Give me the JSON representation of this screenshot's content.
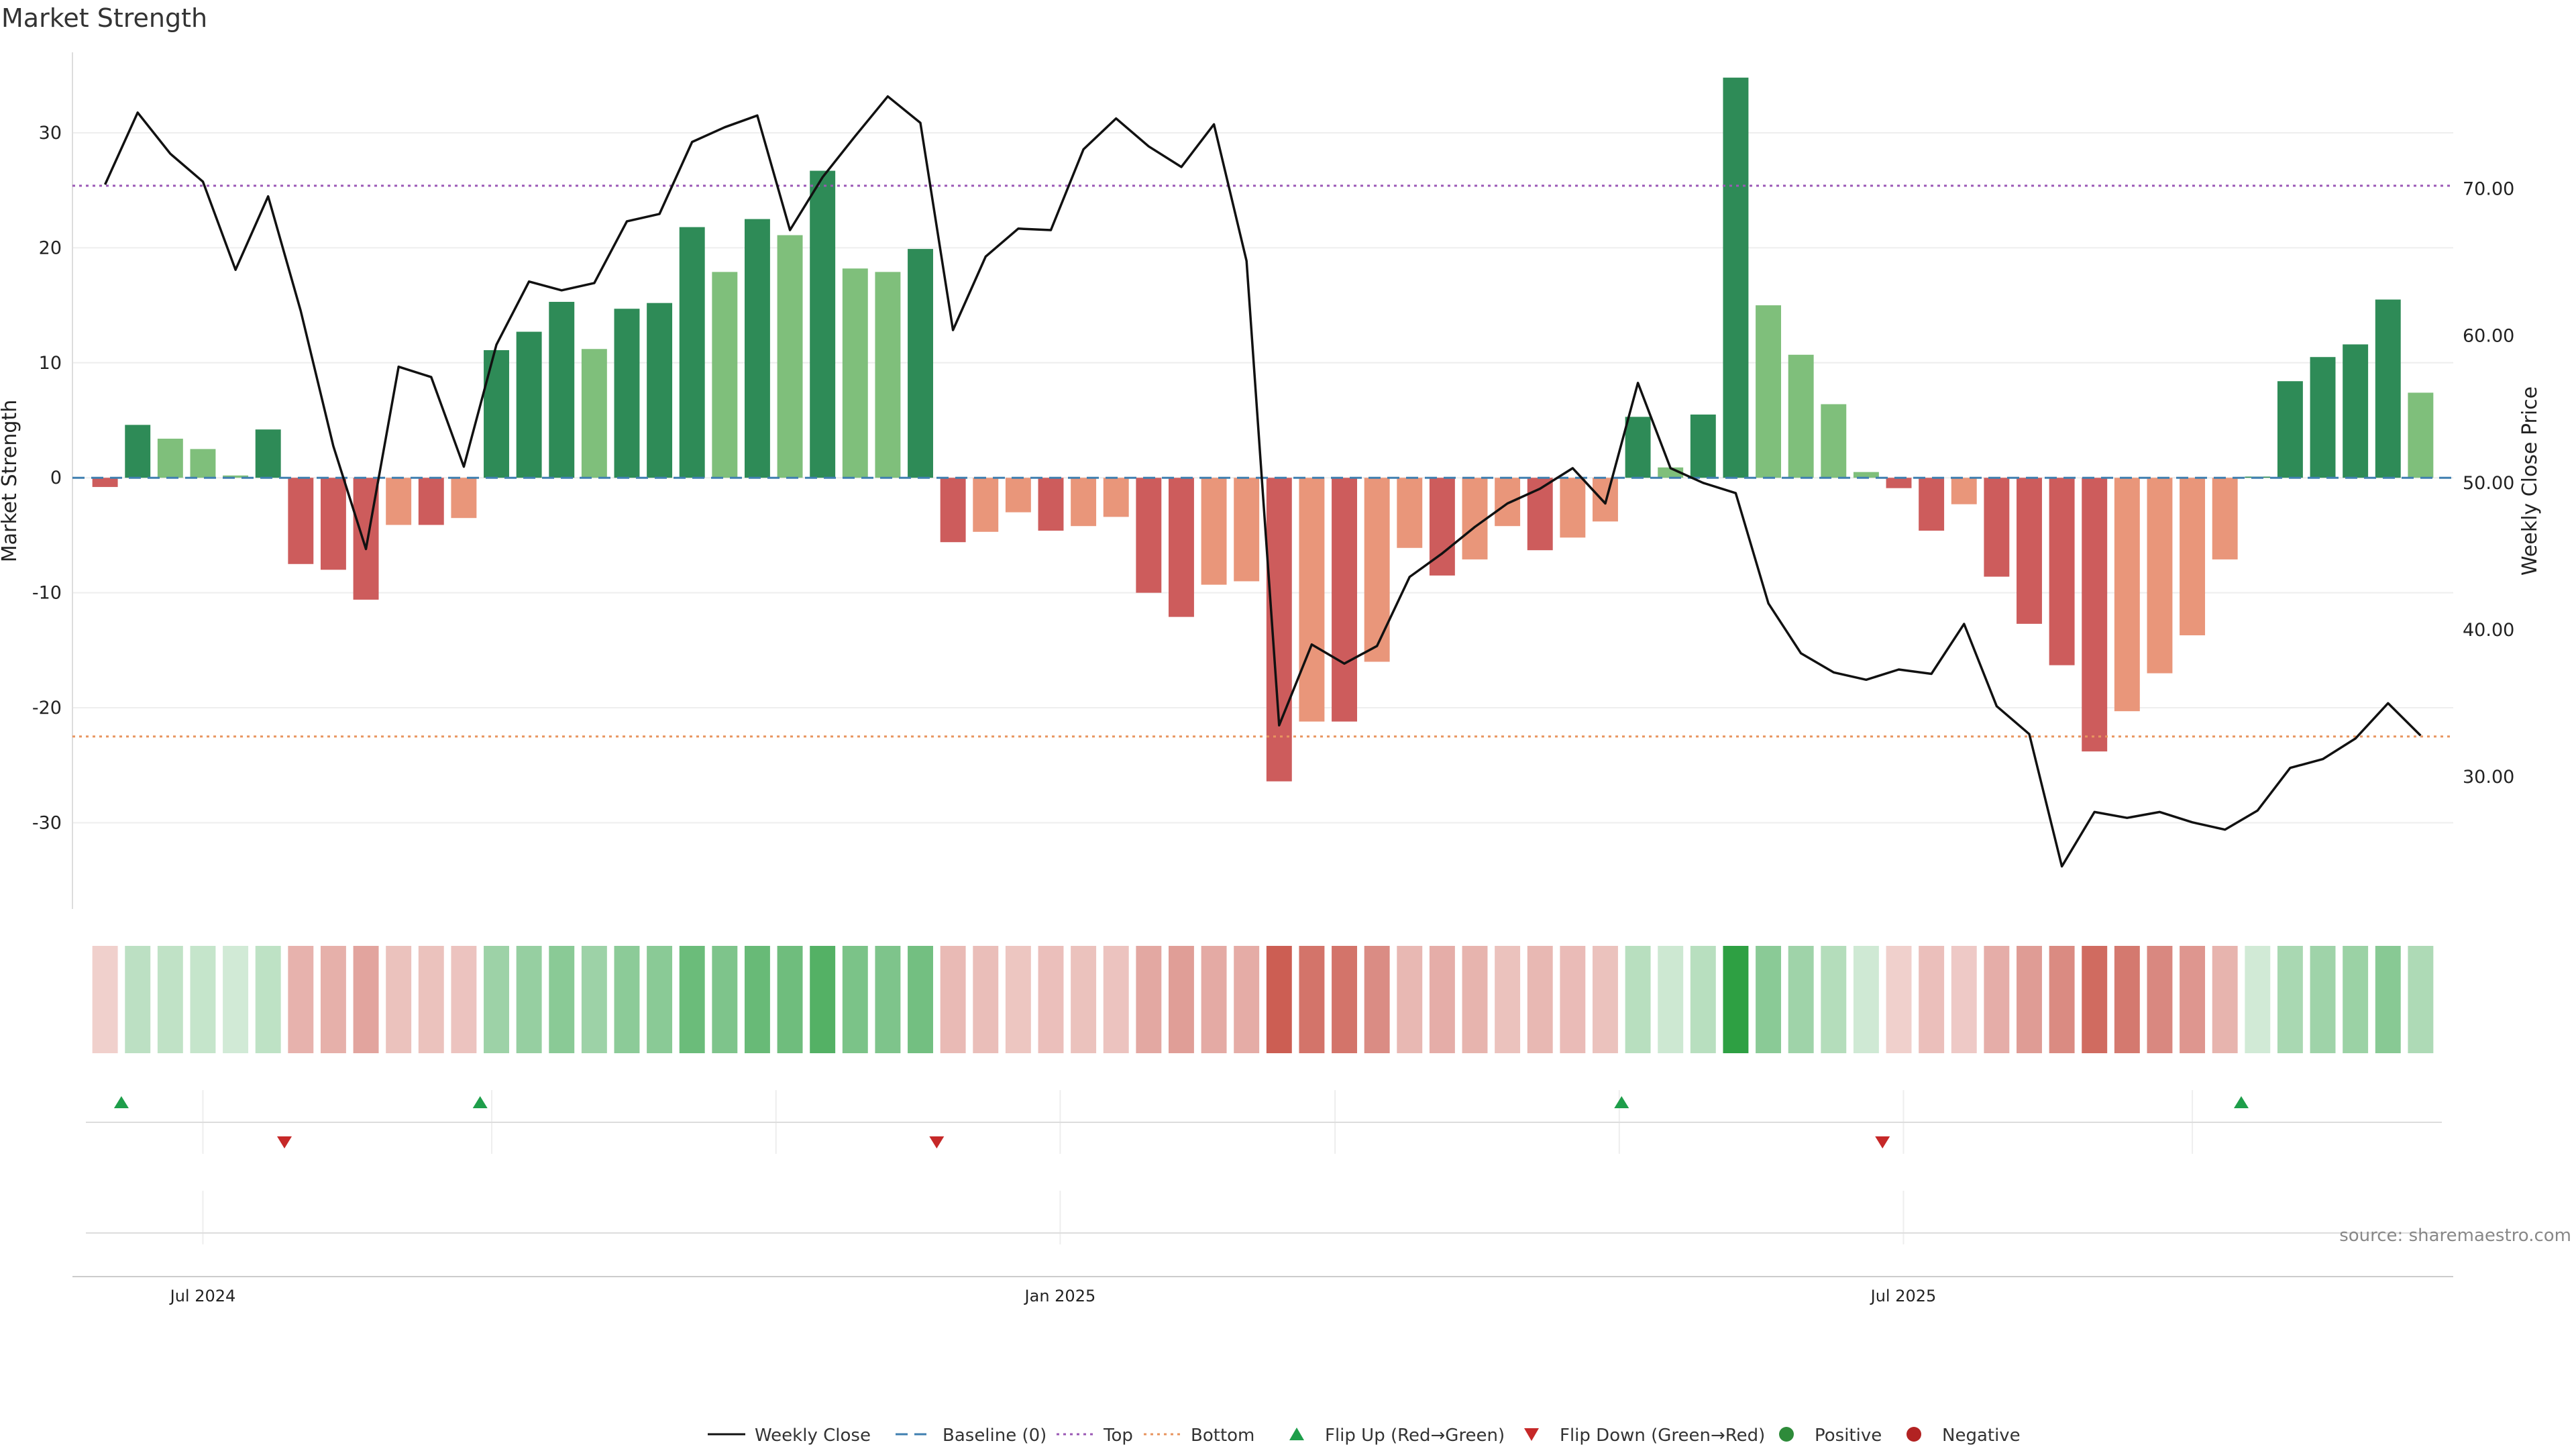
{
  "title": "Market Strength",
  "source": "source: sharemaestro.com",
  "chart_data": {
    "type": "bar",
    "title": "Market Strength",
    "ylabel": "Market Strength",
    "y2label": "Weekly Close Price",
    "ylim": [
      -37.5,
      37
    ],
    "y2lim": [
      21.0,
      79.3
    ],
    "yticks": [
      30,
      20,
      10,
      0,
      -10,
      -20,
      -30
    ],
    "y2ticks": [
      "70.00",
      "60.00",
      "50.00",
      "40.00",
      "30.00"
    ],
    "y2tick_values": [
      70,
      60,
      50,
      40,
      30
    ],
    "x_range": [
      "2024-06-03",
      "2025-10-27"
    ],
    "xticks": [
      {
        "label": "Jul 2024",
        "date": "2024-07-01"
      },
      {
        "label": "Jan 2025",
        "date": "2025-01-01"
      },
      {
        "label": "Jul 2025",
        "date": "2025-07-01"
      }
    ],
    "weeks_start": "2024-06-10",
    "strength": [
      -0.8,
      4.6,
      3.4,
      2.5,
      0.2,
      4.2,
      -7.5,
      -8.0,
      -10.6,
      -4.1,
      -4.1,
      -3.5,
      11.1,
      12.7,
      15.3,
      11.2,
      14.7,
      15.2,
      21.8,
      17.9,
      22.5,
      21.1,
      26.7,
      18.2,
      17.9,
      19.9,
      -5.6,
      -4.7,
      -3.0,
      -4.6,
      -4.2,
      -3.4,
      -10.0,
      -12.1,
      -9.3,
      -9.0,
      -26.4,
      -21.2,
      -21.2,
      -16.0,
      -6.1,
      -8.5,
      -7.1,
      -4.2,
      -6.3,
      -5.2,
      -3.8,
      5.3,
      0.9,
      5.5,
      34.8,
      15.0,
      10.7,
      6.4,
      0.5,
      -0.9,
      -4.6,
      -2.3,
      -8.6,
      -12.7,
      -16.3,
      -23.8,
      -20.3,
      -17.0,
      -13.7,
      -7.1,
      0.1,
      8.4,
      10.5,
      11.6,
      15.5,
      7.4
    ],
    "weekly_close": [
      70.3,
      75.2,
      72.4,
      70.5,
      64.5,
      69.5,
      61.7,
      52.5,
      45.5,
      57.9,
      57.2,
      51.1,
      59.4,
      63.7,
      63.1,
      63.6,
      67.8,
      68.3,
      73.2,
      74.2,
      75.0,
      67.2,
      70.8,
      73.6,
      76.3,
      74.5,
      60.4,
      65.4,
      67.3,
      67.2,
      72.7,
      74.8,
      72.9,
      71.5,
      74.4,
      65.1,
      33.5,
      39.0,
      37.7,
      38.9,
      43.6,
      45.2,
      47.0,
      48.6,
      49.6,
      51.0,
      48.6,
      56.8,
      51.0,
      50.0,
      49.3,
      41.8,
      38.4,
      37.1,
      36.6,
      37.3,
      37.0,
      40.4,
      34.8,
      32.9,
      23.9,
      27.6,
      27.2,
      27.6,
      26.9,
      26.4,
      27.7,
      30.6,
      31.2,
      32.6,
      35.0,
      32.8
    ],
    "top_line": 25.4,
    "bottom_line": -22.5,
    "flip_up_weeks": [
      1,
      12,
      47,
      66
    ],
    "flip_down_weeks": [
      6,
      26,
      55
    ],
    "legend": [
      {
        "label": "Weekly Close",
        "kind": "line",
        "color": "#111111"
      },
      {
        "label": "Baseline (0)",
        "kind": "dash",
        "color": "#3f7fb0"
      },
      {
        "label": "Top",
        "kind": "dot",
        "color": "#9b59b6"
      },
      {
        "label": "Bottom",
        "kind": "dot",
        "color": "#e8955f"
      },
      {
        "label": "Flip Up (Red→Green)",
        "kind": "tri-up",
        "color": "#1e9e4a"
      },
      {
        "label": "Flip Down (Green→Red)",
        "kind": "tri-down",
        "color": "#c62828"
      },
      {
        "label": "Positive",
        "kind": "circle",
        "color": "#2e8b3a"
      },
      {
        "label": "Negative",
        "kind": "circle",
        "color": "#b22222"
      }
    ],
    "colors": {
      "pos_strong": "#2e8b57",
      "pos_weak": "#7fbf7b",
      "neg_strong": "#cd5c5c",
      "neg_weak": "#e9967a",
      "top": "#9b59b6",
      "bottom": "#e8955f",
      "baseline": "#3f7fb0",
      "flip_up": "#1e9e4a",
      "flip_down": "#c62828"
    }
  }
}
